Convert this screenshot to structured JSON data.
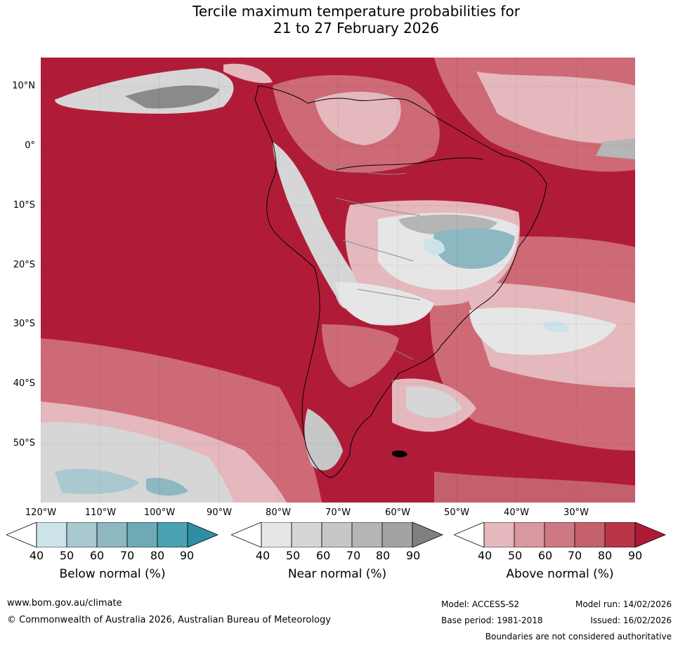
{
  "title": {
    "line1": "Tercile maximum temperature probabilities for",
    "line2": "21 to 27 February 2026"
  },
  "axes": {
    "latitude_labels": [
      "10°N",
      "0°",
      "10°S",
      "20°S",
      "30°S",
      "40°S",
      "50°S"
    ],
    "longitude_labels": [
      "120°W",
      "110°W",
      "100°W",
      "90°W",
      "80°W",
      "70°W",
      "60°W",
      "50°W",
      "40°W",
      "30°W"
    ]
  },
  "colorbars": [
    {
      "label": "Below normal (%)",
      "ticks": [
        "40",
        "50",
        "60",
        "70",
        "80",
        "90"
      ],
      "colors": [
        "#ffffff",
        "#cce3e9",
        "#a9c8cf",
        "#8db8c1",
        "#6eaab6",
        "#4aa1b2",
        "#2f8ea3"
      ]
    },
    {
      "label": "Near normal (%)",
      "ticks": [
        "40",
        "50",
        "60",
        "70",
        "80",
        "90"
      ],
      "colors": [
        "#ffffff",
        "#e6e6e6",
        "#d6d6d6",
        "#c7c7c7",
        "#b5b5b5",
        "#a3a3a3",
        "#808080"
      ]
    },
    {
      "label": "Above normal (%)",
      "ticks": [
        "40",
        "50",
        "60",
        "70",
        "80",
        "90"
      ],
      "colors": [
        "#ffffff",
        "#e4b8bd",
        "#d9979f",
        "#cd7983",
        "#c4606c",
        "#b93548",
        "#ad1a37"
      ]
    }
  ],
  "map_colors": {
    "above_90": "#b01c38",
    "above_80": "#be3b4e",
    "above_70": "#cd6a76",
    "above_60": "#d9979f",
    "above_50": "#e4b8bd",
    "near_60": "#d6d6d6",
    "near_70": "#c7c7c7",
    "near_90": "#8a8a8a",
    "below_70": "#8db8c1",
    "below_50": "#cce3e9",
    "light": "#e6e6e6"
  },
  "footer": {
    "website": "www.bom.gov.au/climate",
    "copyright": "© Commonwealth of Australia 2026, Australian Bureau of Meteorology",
    "model": "Model: ACCESS-S2",
    "model_run": "Model run: 14/02/2026",
    "base_period": "Base period: 1981-2018",
    "issued": "Issued: 16/02/2026",
    "disclaimer": "Boundaries are not considered authoritative"
  }
}
